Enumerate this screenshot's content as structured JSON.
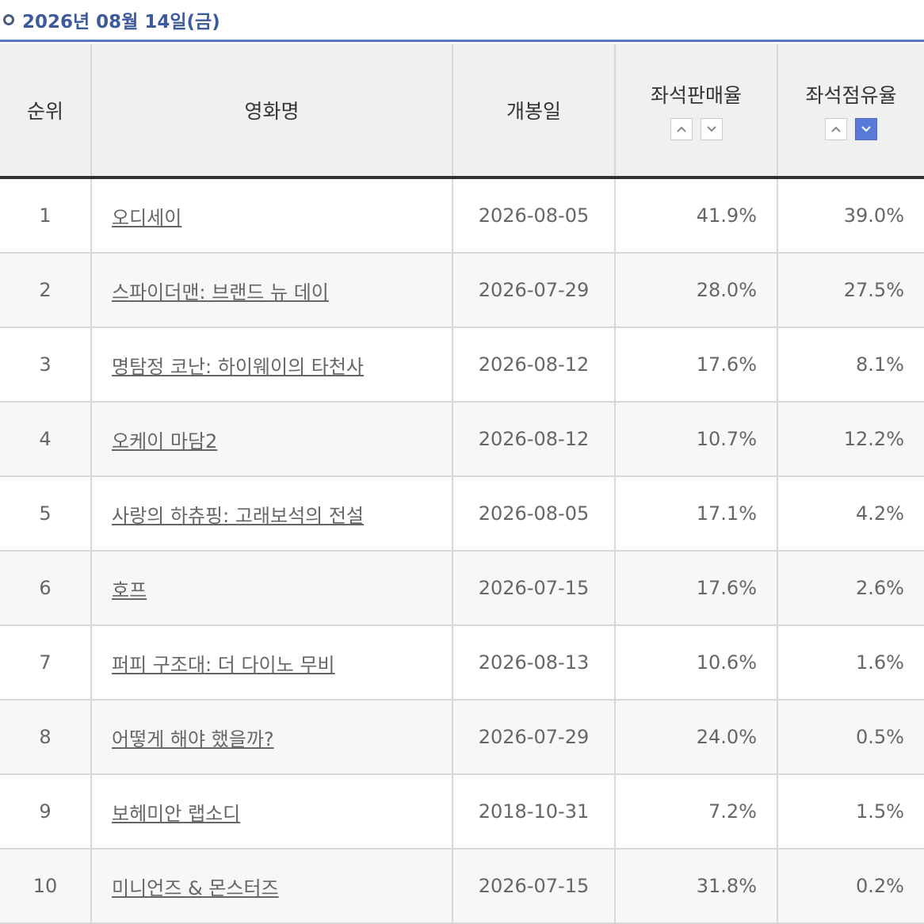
{
  "header": {
    "title": "2026년 08월 14일(금)"
  },
  "table": {
    "columns": [
      "순위",
      "영화명",
      "개봉일",
      "좌석판매율",
      "좌석점유율"
    ],
    "rows": [
      [
        "1",
        "오디세이",
        "2026-08-05",
        "41.9%",
        "39.0%"
      ],
      [
        "2",
        "스파이더맨: 브랜드 뉴 데이",
        "2026-07-29",
        "28.0%",
        "27.5%"
      ],
      [
        "3",
        "명탐정 코난: 하이웨이의 타천사",
        "2026-08-12",
        "17.6%",
        "8.1%"
      ],
      [
        "4",
        "오케이 마담2",
        "2026-08-12",
        "10.7%",
        "12.2%"
      ],
      [
        "5",
        "사랑의 하츄핑: 고래보석의 전설",
        "2026-08-05",
        "17.1%",
        "4.2%"
      ],
      [
        "6",
        "호프",
        "2026-07-15",
        "17.6%",
        "2.6%"
      ],
      [
        "7",
        "퍼피 구조대: 더 다이노 무비",
        "2026-08-13",
        "10.6%",
        "1.6%"
      ],
      [
        "8",
        "어떻게 해야 했을까?",
        "2026-07-29",
        "24.0%",
        "0.5%"
      ],
      [
        "9",
        "보헤미안 랩소디",
        "2018-10-31",
        "7.2%",
        "1.5%"
      ],
      [
        "10",
        "미니언즈 & 몬스터즈",
        "2026-07-15",
        "31.8%",
        "0.2%"
      ]
    ]
  }
}
